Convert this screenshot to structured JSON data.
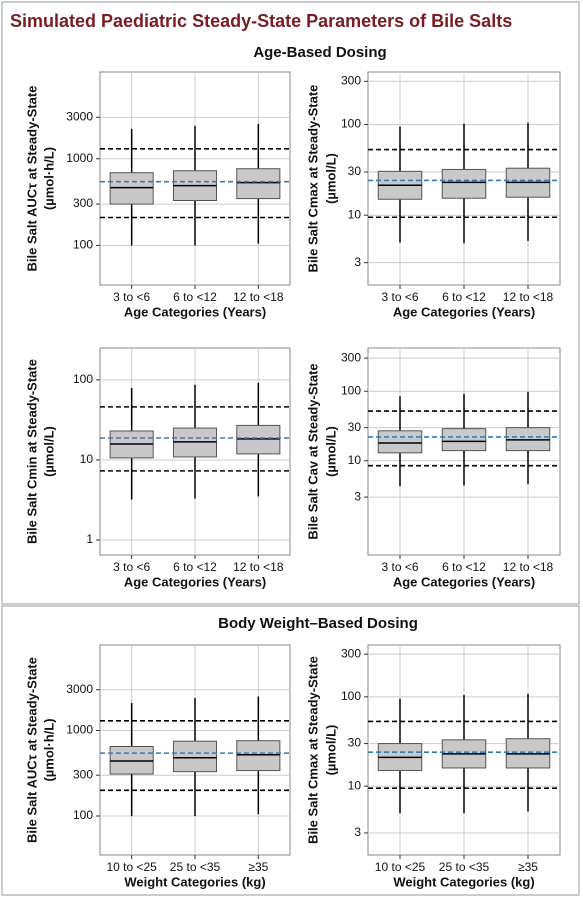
{
  "title": "Simulated Paediatric Steady-State Parameters of Bile Salts",
  "sections": [
    "Age-Based Dosing",
    "Body Weight–Based Dosing"
  ],
  "chart_data": [
    {
      "type": "box",
      "ylabel": [
        "Bile Salt AUCτ at Steady-State",
        "(µmol·h/L)"
      ],
      "xlabel": "Age Categories (Years)",
      "categories": [
        "3 to <6",
        "6 to <12",
        "12 to <18"
      ],
      "log_y": true,
      "ylim": [
        35,
        10000
      ],
      "yticks": [
        100,
        300,
        1000,
        3000
      ],
      "grid": true,
      "whisker_low": [
        100,
        100,
        105
      ],
      "q1": [
        300,
        330,
        347
      ],
      "median": [
        464,
        490,
        530
      ],
      "q3": [
        690,
        727,
        767
      ],
      "whisker_high": [
        2210,
        2390,
        2520
      ],
      "reference_lines": [
        {
          "value": 1300,
          "color": "#000000"
        },
        {
          "value": 210,
          "color": "#000000"
        },
        {
          "value": 544,
          "color": "#3a7ab8"
        }
      ]
    },
    {
      "type": "box",
      "ylabel": [
        "Bile Salt Cmax at Steady-State",
        "(µmol/L)"
      ],
      "xlabel": "Age Categories (Years)",
      "categories": [
        "3 to <6",
        "6 to <12",
        "12 to <18"
      ],
      "log_y": true,
      "ylim": [
        1.7,
        380
      ],
      "yticks": [
        3,
        10,
        30,
        100,
        300
      ],
      "grid": true,
      "whisker_low": [
        5.0,
        4.9,
        5.2
      ],
      "q1": [
        15,
        15.4,
        15.8
      ],
      "median": [
        21.4,
        23,
        23
      ],
      "q3": [
        30.5,
        32,
        33
      ],
      "whisker_high": [
        95,
        102,
        105
      ],
      "reference_lines": [
        {
          "value": 53,
          "color": "#000000"
        },
        {
          "value": 9.5,
          "color": "#000000"
        },
        {
          "value": 24.2,
          "color": "#3a7ab8"
        }
      ]
    },
    {
      "type": "box",
      "ylabel": [
        "Bile Salt Cmin at Steady-State",
        "(µmol/L)"
      ],
      "xlabel": "Age Categories (Years)",
      "categories": [
        "3 to <6",
        "6 to <12",
        "12 to <18"
      ],
      "log_y": true,
      "ylim": [
        0.65,
        250
      ],
      "yticks": [
        1,
        10,
        100
      ],
      "grid": true,
      "whisker_low": [
        3.2,
        3.3,
        3.5
      ],
      "q1": [
        10.6,
        10.9,
        11.9
      ],
      "median": [
        15.8,
        16.8,
        18.3
      ],
      "q3": [
        23,
        25,
        27
      ],
      "whisker_high": [
        79,
        87,
        92
      ],
      "reference_lines": [
        {
          "value": 46,
          "color": "#000000"
        },
        {
          "value": 7.3,
          "color": "#000000"
        },
        {
          "value": 18.8,
          "color": "#3a7ab8"
        }
      ]
    },
    {
      "type": "box",
      "ylabel": [
        "Bile Salt Cav at Steady-State",
        "(µmol/L)"
      ],
      "xlabel": "Age Categories (Years)",
      "categories": [
        "3 to <6",
        "6 to <12",
        "12 to <18"
      ],
      "log_y": true,
      "ylim": [
        0.44,
        420
      ],
      "yticks": [
        3,
        10,
        30,
        100,
        300
      ],
      "grid": true,
      "whisker_low": [
        4.3,
        4.4,
        4.6
      ],
      "q1": [
        13,
        14,
        14
      ],
      "median": [
        18,
        19,
        20
      ],
      "q3": [
        27,
        29,
        30
      ],
      "whisker_high": [
        85,
        92,
        98
      ],
      "reference_lines": [
        {
          "value": 52,
          "color": "#000000"
        },
        {
          "value": 8.5,
          "color": "#000000"
        },
        {
          "value": 22,
          "color": "#3a7ab8"
        }
      ]
    },
    {
      "type": "box",
      "ylabel": [
        "Bile Salt AUCτ at Steady-State",
        "(µmol·h/L)"
      ],
      "xlabel": "Weight Categories (kg)",
      "categories": [
        "10 to <25",
        "25 to <35",
        "≥35"
      ],
      "log_y": true,
      "ylim": [
        35,
        10000
      ],
      "yticks": [
        100,
        300,
        1000,
        3000
      ],
      "grid": true,
      "whisker_low": [
        100,
        100,
        105
      ],
      "q1": [
        310,
        330,
        340
      ],
      "median": [
        440,
        480,
        520
      ],
      "q3": [
        650,
        750,
        760
      ],
      "whisker_high": [
        2100,
        2400,
        2500
      ],
      "reference_lines": [
        {
          "value": 1300,
          "color": "#000000"
        },
        {
          "value": 200,
          "color": "#000000"
        },
        {
          "value": 544,
          "color": "#3a7ab8"
        }
      ]
    },
    {
      "type": "box",
      "ylabel": [
        "Bile Salt Cmax at Steady-State",
        "(µmol/L)"
      ],
      "xlabel": "Weight Categories (kg)",
      "categories": [
        "10 to <25",
        "25 to <35",
        "≥35"
      ],
      "log_y": true,
      "ylim": [
        1.7,
        380
      ],
      "yticks": [
        3,
        10,
        30,
        100,
        300
      ],
      "grid": true,
      "whisker_low": [
        5,
        5,
        5.2
      ],
      "q1": [
        15,
        16,
        16
      ],
      "median": [
        21,
        23,
        23
      ],
      "q3": [
        30,
        33,
        34
      ],
      "whisker_high": [
        95,
        105,
        108
      ],
      "reference_lines": [
        {
          "value": 53,
          "color": "#000000"
        },
        {
          "value": 9.5,
          "color": "#000000"
        },
        {
          "value": 24,
          "color": "#3a7ab8"
        }
      ]
    }
  ]
}
